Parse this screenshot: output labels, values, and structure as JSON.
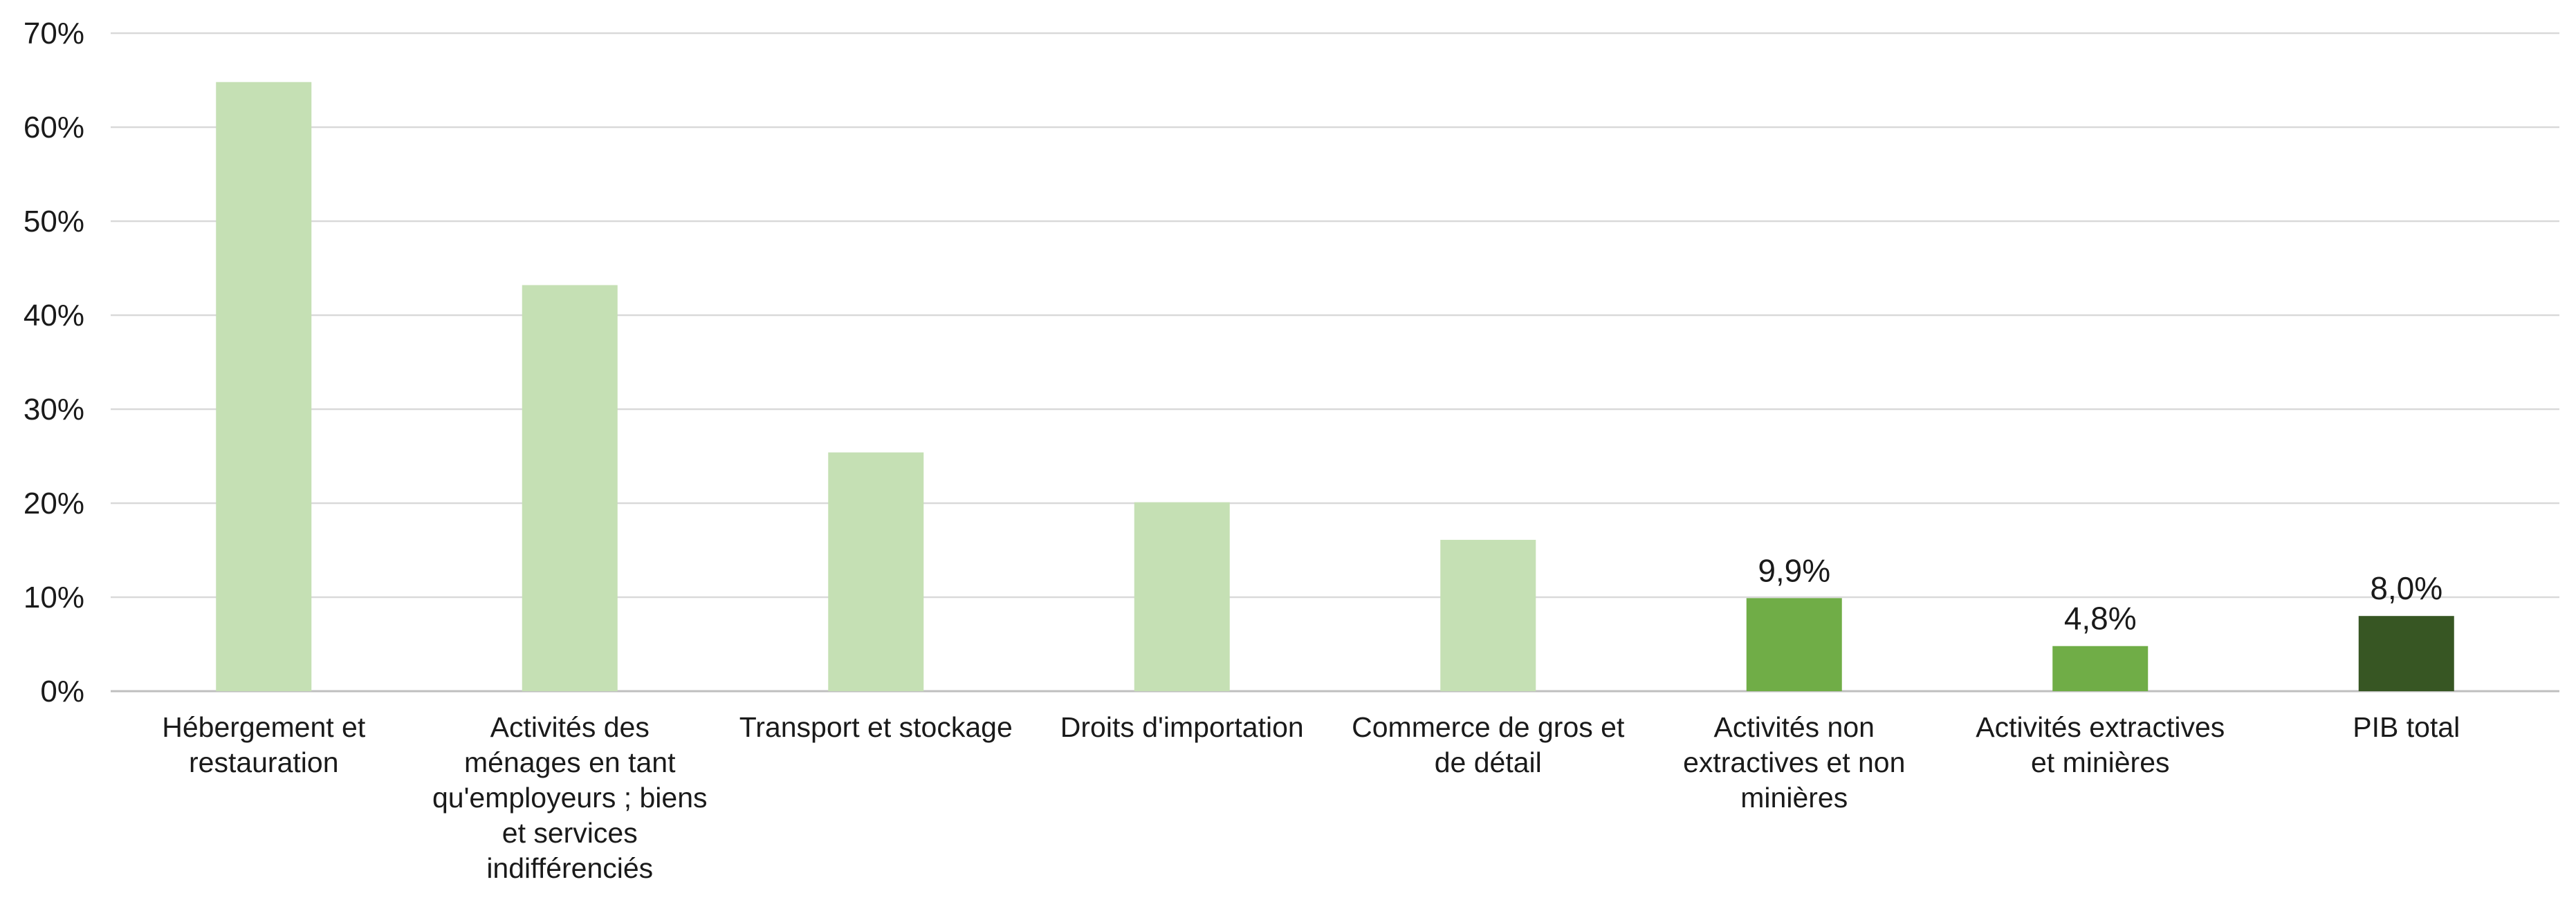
{
  "chart_data": {
    "type": "bar",
    "title": "",
    "xlabel": "",
    "ylabel": "",
    "ylim": [
      0,
      70
    ],
    "yticks": [
      0,
      10,
      20,
      30,
      40,
      50,
      60,
      70
    ],
    "ytick_labels": [
      "0%",
      "10%",
      "20%",
      "30%",
      "40%",
      "50%",
      "60%",
      "70%"
    ],
    "grid": true,
    "legend": "none",
    "categories": [
      [
        "Hébergement et",
        "restauration"
      ],
      [
        "Activités des",
        "ménages en tant",
        "qu'employeurs ; biens",
        "et services",
        "indifférenciés"
      ],
      [
        "Transport et stockage"
      ],
      [
        "Droits d'importation"
      ],
      [
        "Commerce de gros et",
        "de détail"
      ],
      [
        "Activités non",
        "extractives et non",
        "minières"
      ],
      [
        "Activités extractives",
        "et minières"
      ],
      [
        "PIB total"
      ]
    ],
    "values": [
      64.8,
      43.2,
      25.4,
      20.1,
      16.1,
      9.9,
      4.8,
      8.0
    ],
    "data_labels": [
      "",
      "",
      "",
      "",
      "",
      "9,9%",
      "4,8%",
      "8,0%"
    ],
    "colors": [
      "#c5e0b4",
      "#c5e0b4",
      "#c5e0b4",
      "#c5e0b4",
      "#c5e0b4",
      "#70ad47",
      "#70ad47",
      "#375623"
    ],
    "grid_color": "#d9d9d9",
    "axis_color": "#bfbfbf"
  }
}
